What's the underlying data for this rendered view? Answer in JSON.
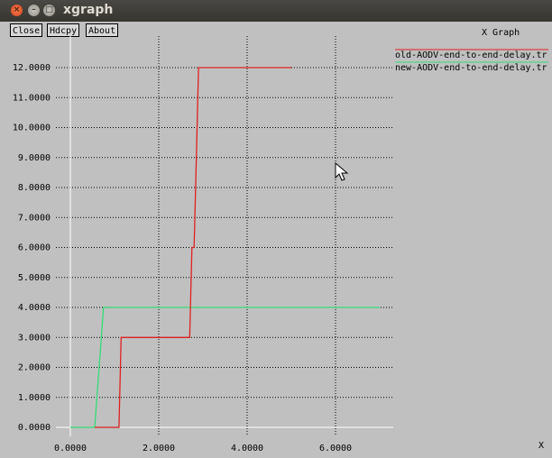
{
  "window": {
    "title": "xgraph",
    "close_icon": "close-icon",
    "minimize_icon": "minimize-icon",
    "maximize_icon": "maximize-icon"
  },
  "toolbar": {
    "close_label": "Close",
    "hdcpy_label": "Hdcpy",
    "about_label": "About"
  },
  "graph": {
    "title": "X Graph",
    "x_axis_label": "X"
  },
  "legend": [
    {
      "label": "old-AODV-end-to-end-delay.tr",
      "color": "#e02020"
    },
    {
      "label": "new-AODV-end-to-end-delay.tr",
      "color": "#33dd77"
    }
  ],
  "chart_data": {
    "type": "line",
    "title": "X Graph",
    "xlabel": "X",
    "ylabel": "",
    "xlim": [
      -0.2,
      7.2
    ],
    "ylim": [
      -0.2,
      12.4
    ],
    "x_ticks": [
      0,
      2,
      4,
      6
    ],
    "x_tick_labels": [
      "0.0000",
      "2.0000",
      "4.0000",
      "6.0000"
    ],
    "y_ticks": [
      0,
      1,
      2,
      3,
      4,
      5,
      6,
      7,
      8,
      9,
      10,
      11,
      12
    ],
    "y_tick_labels": [
      "0.0000",
      "1.0000",
      "2.0000",
      "3.0000",
      "4.0000",
      "5.0000",
      "6.0000",
      "7.0000",
      "8.0000",
      "9.0000",
      "10.0000",
      "11.0000",
      "12.0000"
    ],
    "grid": true,
    "legend_position": "top-right",
    "series": [
      {
        "name": "old-AODV-end-to-end-delay.tr",
        "color": "#e02020",
        "x": [
          0.55,
          1.1,
          1.15,
          2.7,
          2.75,
          2.8,
          2.85,
          2.9,
          3.0,
          5.0
        ],
        "y": [
          0,
          0,
          3,
          3,
          6,
          6,
          9,
          12,
          12,
          12
        ]
      },
      {
        "name": "new-AODV-end-to-end-delay.tr",
        "color": "#33dd77",
        "x": [
          0,
          0.55,
          0.75,
          7.0
        ],
        "y": [
          0,
          0,
          4,
          4
        ]
      }
    ]
  }
}
